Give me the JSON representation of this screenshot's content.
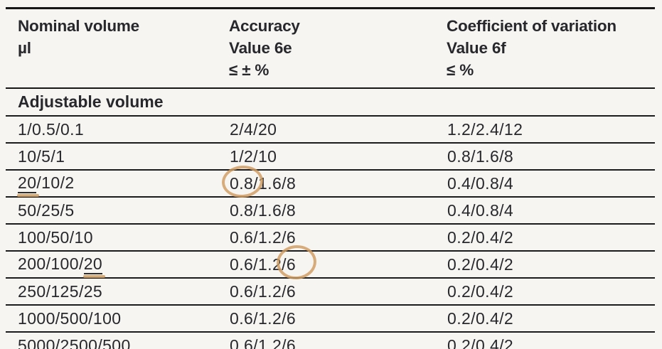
{
  "table": {
    "header": {
      "nominal": {
        "l1": "Nominal volume",
        "l2": "µl"
      },
      "accuracy": {
        "l1": "Accuracy",
        "l2": "Value 6e",
        "l3": "≤ ± %"
      },
      "cv": {
        "l1": "Coefficient of variation",
        "l2": "Value 6f",
        "l3": "≤ %"
      }
    },
    "section": "Adjustable volume",
    "rows": [
      {
        "nominal": "1/0.5/0.1",
        "accuracy": "2/4/20",
        "cv": "1.2/2.4/12"
      },
      {
        "nominal": "10/5/1",
        "accuracy": "1/2/10",
        "cv": "0.8/1.6/8"
      },
      {
        "nominal_marked": "20",
        "nominal_rest": "/10/2",
        "accuracy_circled": "0.8",
        "accuracy_rest": "/1.6/8",
        "cv": "0.4/0.8/4"
      },
      {
        "nominal": "50/25/5",
        "accuracy": "0.8/1.6/8",
        "cv": "0.4/0.8/4"
      },
      {
        "nominal": "100/50/10",
        "accuracy": "0.6/1.2/6",
        "cv": "0.2/0.4/2"
      },
      {
        "nominal_pre": "200/100/",
        "nominal_marked": "20",
        "accuracy_pre": "0.6/1.2",
        "accuracy_circled": "/6",
        "cv": "0.2/0.4/2"
      },
      {
        "nominal": "250/125/25",
        "accuracy": "0.6/1.2/6",
        "cv": "0.2/0.4/2"
      },
      {
        "nominal": "1000/500/100",
        "accuracy": "0.6/1.2/6",
        "cv": "0.2/0.4/2"
      },
      {
        "nominal": "5000/2500/500",
        "accuracy": "0.6/1.2/6",
        "cv": "0.2/0.4/2"
      }
    ],
    "annotations": {
      "color": "#cf9c5f",
      "circled_values": [
        "0.8",
        "/6"
      ],
      "underlined_values": [
        "20",
        "20"
      ]
    }
  }
}
